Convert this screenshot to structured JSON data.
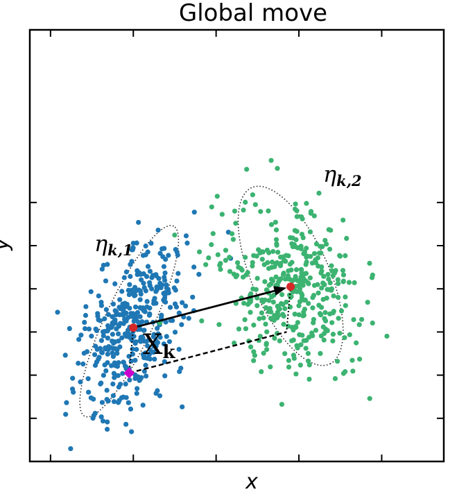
{
  "chart_data": {
    "type": "scatter",
    "title": "Global move",
    "xlabel": "x",
    "ylabel": "y",
    "xlim": [
      0,
      10
    ],
    "ylim": [
      0,
      10
    ],
    "grid": false,
    "tick_labels": false,
    "x_ticks": [
      0.5,
      2.5,
      4.5,
      6.5,
      8.5
    ],
    "y_ticks": [
      1.0,
      2.0,
      3.0,
      4.0,
      5.0,
      6.0
    ],
    "colors": {
      "cluster1": "#1f77b4",
      "cluster2": "#3cb371",
      "centers": "#d62728",
      "current_point": "#cc00cc"
    },
    "clusters": [
      {
        "mean": [
          2.5,
          3.1
        ],
        "color": "cluster1",
        "n": 400,
        "major_axis": 2.2,
        "minor_axis": 0.55,
        "angle_deg": 64,
        "ellipse": {
          "center": [
            2.4,
            3.25
          ],
          "semi_major": 4.9,
          "semi_minor": 1.15,
          "angle_deg": 64
        }
      },
      {
        "mean": [
          6.3,
          4.05
        ],
        "color": "cluster2",
        "n": 400,
        "major_axis": 2.0,
        "minor_axis": 0.8,
        "angle_deg": -65,
        "ellipse": {
          "center": [
            6.3,
            4.3
          ],
          "semi_major": 4.5,
          "semi_minor": 1.85,
          "angle_deg": -65
        }
      }
    ],
    "centers": [
      {
        "name": "eta_k1",
        "x": 2.5,
        "y": 3.1
      },
      {
        "name": "eta_k2",
        "x": 6.3,
        "y": 4.05
      }
    ],
    "current_point": {
      "x": 2.4,
      "y": 2.05
    },
    "arrow": {
      "from": [
        2.5,
        3.1
      ],
      "to": [
        6.3,
        4.05
      ]
    },
    "dashed_move": [
      [
        2.4,
        2.05
      ],
      [
        6.2,
        3.0
      ]
    ],
    "dotted_offsets": [
      [
        [
          2.5,
          3.1
        ],
        [
          2.4,
          2.05
        ]
      ],
      [
        [
          6.3,
          4.05
        ],
        [
          6.2,
          3.0
        ]
      ]
    ],
    "annotations": {
      "eta1_main": "η",
      "eta1_sub": "k,1",
      "eta2_main": "η",
      "eta2_sub": "k,2",
      "x_main": "X",
      "x_sub": "k"
    }
  }
}
